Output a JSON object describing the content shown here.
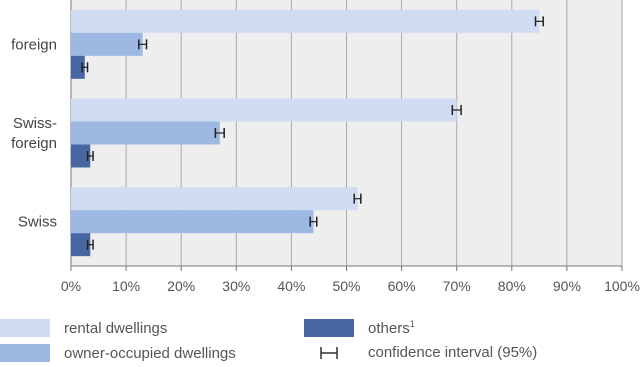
{
  "chart_data": {
    "type": "bar",
    "orientation": "horizontal",
    "categories": [
      "foreign",
      "Swiss-foreign",
      "Swiss"
    ],
    "category_lines": [
      [
        "foreign"
      ],
      [
        "Swiss-",
        "foreign"
      ],
      [
        "Swiss"
      ]
    ],
    "series": [
      {
        "name": "rental dwellings",
        "color": "#cfdcf1",
        "values": [
          85,
          70,
          52
        ],
        "ci": [
          0.4,
          0.5,
          0.3
        ]
      },
      {
        "name": "owner-occupied dwellings",
        "color": "#9db8e3",
        "values": [
          13,
          27,
          44
        ],
        "ci": [
          0.4,
          0.5,
          0.3
        ]
      },
      {
        "name": "others",
        "color": "#4767a3",
        "values": [
          2.5,
          3.5,
          3.5
        ],
        "ci": [
          0.2,
          0.2,
          0.2
        ]
      }
    ],
    "xlim": [
      0,
      100
    ],
    "xticks": [
      "0%",
      "10%",
      "20%",
      "30%",
      "40%",
      "50%",
      "60%",
      "70%",
      "80%",
      "90%",
      "100%"
    ],
    "grid": true,
    "legend_position": "bottom"
  },
  "legend": {
    "rental": "rental dwellings",
    "owner": "owner-occupied dwellings",
    "others": "others",
    "others_sup": "1",
    "ci": "confidence interval (95%)"
  }
}
